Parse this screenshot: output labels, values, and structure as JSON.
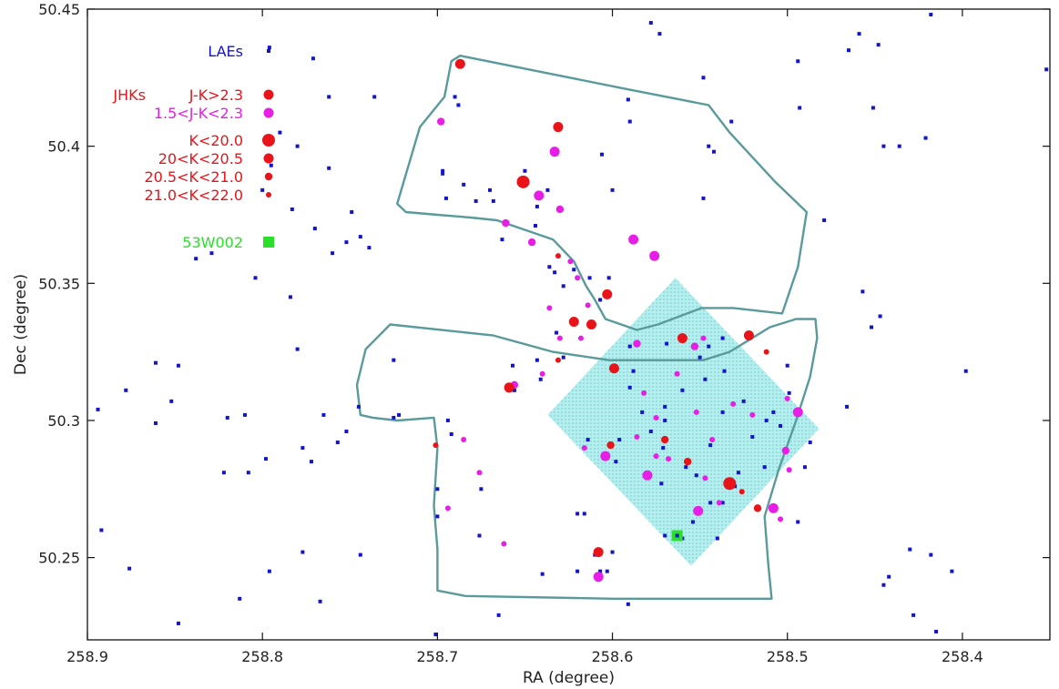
{
  "chart_data": {
    "type": "scatter",
    "title": "",
    "xlabel": "RA (degree)",
    "ylabel": "Dec (degree)",
    "xlim": [
      258.9,
      258.35
    ],
    "ylim": [
      50.22,
      50.45
    ],
    "x_reversed": true,
    "grid": false,
    "x_ticks": [
      258.9,
      258.8,
      258.7,
      258.6,
      258.5,
      258.4
    ],
    "x_tick_labels": [
      "258.9",
      "258.8",
      "258.7",
      "258.6",
      "258.5",
      "258.4"
    ],
    "y_ticks": [
      50.25,
      50.3,
      50.35,
      50.4,
      50.45
    ],
    "y_tick_labels": [
      "50.25",
      "50.3",
      "50.35",
      "50.4",
      "50.45"
    ],
    "legend": {
      "placement": "top-left",
      "lae_label": "LAEs",
      "jhks_label": "JHKs",
      "color_entries": [
        {
          "label": "J-K>2.3",
          "color": "#e8141a"
        },
        {
          "label": "1.5<J-K<2.3",
          "color": "#e61ee6"
        }
      ],
      "size_entries": [
        {
          "label": "K<20.0",
          "color": "#e8141a",
          "size": "xl"
        },
        {
          "label": "20<K<20.5",
          "color": "#e8141a",
          "size": "l"
        },
        {
          "label": "20.5<K<21.0",
          "color": "#e8141a",
          "size": "m"
        },
        {
          "label": "21.0<K<22.0",
          "color": "#e8141a",
          "size": "s"
        }
      ],
      "source_label": "53W002",
      "source_color": "#2be02b"
    },
    "colors": {
      "lae": "#1414c8",
      "red": "#e8141a",
      "magenta": "#e61ee6",
      "source": "#2be02b",
      "footprint": "#5a9a9a",
      "field_fill": "#9ee6e6"
    },
    "footprint_outline": [
      [
        258.687,
        50.433
      ],
      [
        258.593,
        50.421
      ],
      [
        258.545,
        50.415
      ],
      [
        258.533,
        50.405
      ],
      [
        258.507,
        50.387
      ],
      [
        258.489,
        50.376
      ],
      [
        258.494,
        50.356
      ],
      [
        258.503,
        50.339
      ],
      [
        258.531,
        50.341
      ],
      [
        258.549,
        50.341
      ],
      [
        258.574,
        50.335
      ],
      [
        258.586,
        50.333
      ],
      [
        258.604,
        50.337
      ],
      [
        258.61,
        50.344
      ],
      [
        258.615,
        50.349
      ],
      [
        258.622,
        50.358
      ],
      [
        258.634,
        50.366
      ],
      [
        258.666,
        50.373
      ],
      [
        258.681,
        50.374
      ],
      [
        258.7,
        50.375
      ],
      [
        258.718,
        50.376
      ],
      [
        258.723,
        50.379
      ],
      [
        258.71,
        50.407
      ],
      [
        258.696,
        50.418
      ],
      [
        258.692,
        50.431
      ],
      [
        258.687,
        50.433
      ]
    ],
    "footprint_outline_lower": [
      [
        258.548,
        50.322
      ],
      [
        258.533,
        50.325
      ],
      [
        258.51,
        50.334
      ],
      [
        258.495,
        50.337
      ],
      [
        258.484,
        50.337
      ],
      [
        258.483,
        50.33
      ],
      [
        258.487,
        50.316
      ],
      [
        258.495,
        50.3
      ],
      [
        258.505,
        50.282
      ],
      [
        258.513,
        50.265
      ],
      [
        258.511,
        50.248
      ],
      [
        258.509,
        50.235
      ],
      [
        258.6,
        50.235
      ],
      [
        258.684,
        50.236
      ],
      [
        258.7,
        50.238
      ],
      [
        258.7,
        50.253
      ],
      [
        258.702,
        50.269
      ],
      [
        258.7,
        50.29
      ],
      [
        258.702,
        50.301
      ],
      [
        258.723,
        50.3
      ],
      [
        258.737,
        50.301
      ],
      [
        258.744,
        50.302
      ],
      [
        258.746,
        50.313
      ],
      [
        258.741,
        50.326
      ],
      [
        258.727,
        50.335
      ],
      [
        258.668,
        50.331
      ],
      [
        258.634,
        50.325
      ],
      [
        258.602,
        50.322
      ],
      [
        258.548,
        50.322
      ]
    ],
    "field_polygon": [
      [
        258.564,
        50.352
      ],
      [
        258.482,
        50.297
      ],
      [
        258.555,
        50.247
      ],
      [
        258.637,
        50.302
      ]
    ],
    "laes": [
      [
        258.796,
        50.436
      ],
      [
        258.771,
        50.432
      ],
      [
        258.736,
        50.418
      ],
      [
        258.762,
        50.418
      ],
      [
        258.79,
        50.405
      ],
      [
        258.78,
        50.4
      ],
      [
        258.795,
        50.393
      ],
      [
        258.8,
        50.384
      ],
      [
        258.762,
        50.392
      ],
      [
        258.783,
        50.377
      ],
      [
        258.749,
        50.376
      ],
      [
        258.77,
        50.37
      ],
      [
        258.752,
        50.365
      ],
      [
        258.76,
        50.361
      ],
      [
        258.744,
        50.367
      ],
      [
        258.739,
        50.363
      ],
      [
        258.838,
        50.359
      ],
      [
        258.829,
        50.361
      ],
      [
        258.804,
        50.352
      ],
      [
        258.784,
        50.345
      ],
      [
        258.905,
        50.333
      ],
      [
        258.878,
        50.311
      ],
      [
        258.861,
        50.321
      ],
      [
        258.848,
        50.32
      ],
      [
        258.852,
        50.307
      ],
      [
        258.894,
        50.304
      ],
      [
        258.861,
        50.299
      ],
      [
        258.82,
        50.301
      ],
      [
        258.81,
        50.302
      ],
      [
        258.78,
        50.326
      ],
      [
        258.765,
        50.302
      ],
      [
        258.777,
        50.29
      ],
      [
        258.772,
        50.285
      ],
      [
        258.798,
        50.286
      ],
      [
        258.808,
        50.281
      ],
      [
        258.757,
        50.292
      ],
      [
        258.752,
        50.296
      ],
      [
        258.745,
        50.305
      ],
      [
        258.722,
        50.302
      ],
      [
        258.725,
        50.322
      ],
      [
        258.725,
        50.301
      ],
      [
        258.694,
        50.3
      ],
      [
        258.692,
        50.295
      ],
      [
        258.7,
        50.275
      ],
      [
        258.7,
        50.265
      ],
      [
        258.675,
        50.275
      ],
      [
        258.676,
        50.258
      ],
      [
        258.822,
        50.281
      ],
      [
        258.848,
        50.226
      ],
      [
        258.876,
        50.246
      ],
      [
        258.892,
        50.26
      ],
      [
        258.777,
        50.252
      ],
      [
        258.767,
        50.234
      ],
      [
        258.744,
        50.251
      ],
      [
        258.796,
        50.245
      ],
      [
        258.813,
        50.235
      ],
      [
        258.701,
        50.222
      ],
      [
        258.666,
        50.219
      ],
      [
        258.603,
        50.245
      ],
      [
        258.607,
        50.245
      ],
      [
        258.64,
        50.244
      ],
      [
        258.665,
        50.229
      ],
      [
        258.591,
        50.233
      ],
      [
        258.442,
        50.243
      ],
      [
        258.445,
        50.24
      ],
      [
        258.43,
        50.253
      ],
      [
        258.418,
        50.251
      ],
      [
        258.428,
        50.229
      ],
      [
        258.415,
        50.223
      ],
      [
        258.406,
        50.245
      ],
      [
        258.494,
        50.263
      ],
      [
        258.49,
        50.283
      ],
      [
        258.487,
        50.292
      ],
      [
        258.499,
        50.31
      ],
      [
        258.504,
        50.298
      ],
      [
        258.508,
        50.303
      ],
      [
        258.52,
        50.294
      ],
      [
        258.513,
        50.283
      ],
      [
        258.534,
        50.276
      ],
      [
        258.552,
        50.28
      ],
      [
        258.558,
        50.283
      ],
      [
        258.544,
        50.27
      ],
      [
        258.551,
        50.267
      ],
      [
        258.572,
        50.277
      ],
      [
        258.571,
        50.29
      ],
      [
        258.578,
        50.296
      ],
      [
        258.57,
        50.305
      ],
      [
        258.583,
        50.303
      ],
      [
        258.588,
        50.318
      ],
      [
        258.59,
        50.327
      ],
      [
        258.569,
        50.328
      ],
      [
        258.57,
        50.3
      ],
      [
        258.547,
        50.315
      ],
      [
        258.55,
        50.323
      ],
      [
        258.545,
        50.327
      ],
      [
        258.537,
        50.33
      ],
      [
        258.536,
        50.318
      ],
      [
        258.537,
        50.303
      ],
      [
        258.525,
        50.307
      ],
      [
        258.512,
        50.3
      ],
      [
        258.466,
        50.305
      ],
      [
        258.452,
        50.334
      ],
      [
        258.447,
        50.338
      ],
      [
        258.457,
        50.347
      ],
      [
        258.398,
        50.318
      ],
      [
        258.352,
        50.428
      ],
      [
        258.418,
        50.448
      ],
      [
        258.448,
        50.437
      ],
      [
        258.459,
        50.441
      ],
      [
        258.465,
        50.435
      ],
      [
        258.494,
        50.431
      ],
      [
        258.493,
        50.414
      ],
      [
        258.451,
        50.414
      ],
      [
        258.445,
        50.4
      ],
      [
        258.436,
        50.4
      ],
      [
        258.421,
        50.403
      ],
      [
        258.479,
        50.373
      ],
      [
        258.548,
        50.381
      ],
      [
        258.545,
        50.4
      ],
      [
        258.542,
        50.398
      ],
      [
        258.548,
        50.425
      ],
      [
        258.532,
        50.409
      ],
      [
        258.573,
        50.441
      ],
      [
        258.578,
        50.445
      ],
      [
        258.591,
        50.417
      ],
      [
        258.59,
        50.409
      ],
      [
        258.606,
        50.397
      ],
      [
        258.6,
        50.384
      ],
      [
        258.637,
        50.384
      ],
      [
        258.643,
        50.378
      ],
      [
        258.65,
        50.391
      ],
      [
        258.644,
        50.371
      ],
      [
        258.668,
        50.38
      ],
      [
        258.678,
        50.38
      ],
      [
        258.67,
        50.384
      ],
      [
        258.685,
        50.386
      ],
      [
        258.697,
        50.39
      ],
      [
        258.697,
        50.391
      ],
      [
        258.688,
        50.415
      ],
      [
        258.69,
        50.418
      ],
      [
        258.663,
        50.366
      ],
      [
        258.695,
        50.381
      ],
      [
        258.636,
        50.356
      ],
      [
        258.633,
        50.354
      ],
      [
        258.622,
        50.355
      ],
      [
        258.613,
        50.352
      ],
      [
        258.602,
        50.352
      ],
      [
        258.607,
        50.344
      ],
      [
        258.628,
        50.349
      ],
      [
        258.632,
        50.332
      ],
      [
        258.628,
        50.323
      ],
      [
        258.643,
        50.322
      ],
      [
        258.641,
        50.315
      ],
      [
        258.656,
        50.311
      ],
      [
        258.657,
        50.32
      ],
      [
        258.59,
        50.312
      ],
      [
        258.596,
        50.293
      ],
      [
        258.598,
        50.285
      ],
      [
        258.614,
        50.293
      ],
      [
        258.616,
        50.266
      ],
      [
        258.62,
        50.266
      ],
      [
        258.62,
        50.245
      ],
      [
        258.61,
        50.251
      ],
      [
        258.6,
        50.252
      ],
      [
        258.56,
        50.257
      ],
      [
        258.57,
        50.258
      ],
      [
        258.54,
        50.257
      ],
      [
        258.554,
        50.263
      ],
      [
        258.537,
        50.27
      ],
      [
        258.53,
        50.276
      ],
      [
        258.528,
        50.281
      ],
      [
        258.544,
        50.291
      ],
      [
        258.5,
        50.32
      ],
      [
        258.56,
        50.311
      ]
    ],
    "jhks_red": [
      [
        258.687,
        50.43,
        "l"
      ],
      [
        258.631,
        50.407,
        "l"
      ],
      [
        258.651,
        50.387,
        "xl"
      ],
      [
        258.631,
        50.36,
        "s"
      ],
      [
        258.603,
        50.346,
        "l"
      ],
      [
        258.622,
        50.336,
        "l"
      ],
      [
        258.612,
        50.335,
        "l"
      ],
      [
        258.599,
        50.319,
        "l"
      ],
      [
        258.631,
        50.322,
        "s"
      ],
      [
        258.659,
        50.312,
        "l"
      ],
      [
        258.56,
        50.33,
        "l"
      ],
      [
        258.522,
        50.331,
        "l"
      ],
      [
        258.512,
        50.325,
        "s"
      ],
      [
        258.601,
        50.291,
        "m"
      ],
      [
        258.57,
        50.293,
        "m"
      ],
      [
        258.557,
        50.285,
        "m"
      ],
      [
        258.533,
        50.277,
        "xl"
      ],
      [
        258.526,
        50.274,
        "s"
      ],
      [
        258.517,
        50.268,
        "m"
      ],
      [
        258.701,
        50.291,
        "s"
      ],
      [
        258.608,
        50.252,
        "l"
      ]
    ],
    "jhks_magenta": [
      [
        258.698,
        50.409,
        "m"
      ],
      [
        258.633,
        50.398,
        "l"
      ],
      [
        258.642,
        50.382,
        "l"
      ],
      [
        258.63,
        50.377,
        "m"
      ],
      [
        258.661,
        50.372,
        "m"
      ],
      [
        258.646,
        50.365,
        "m"
      ],
      [
        258.588,
        50.366,
        "l"
      ],
      [
        258.576,
        50.36,
        "l"
      ],
      [
        258.624,
        50.358,
        "s"
      ],
      [
        258.62,
        50.352,
        "s"
      ],
      [
        258.636,
        50.341,
        "s"
      ],
      [
        258.614,
        50.342,
        "s"
      ],
      [
        258.63,
        50.33,
        "s"
      ],
      [
        258.618,
        50.33,
        "s"
      ],
      [
        258.64,
        50.317,
        "s"
      ],
      [
        258.656,
        50.313,
        "m"
      ],
      [
        258.586,
        50.328,
        "m"
      ],
      [
        258.553,
        50.327,
        "m"
      ],
      [
        258.548,
        50.33,
        "s"
      ],
      [
        258.563,
        50.317,
        "s"
      ],
      [
        258.582,
        50.31,
        "s"
      ],
      [
        258.575,
        50.301,
        "s"
      ],
      [
        258.552,
        50.303,
        "s"
      ],
      [
        258.52,
        50.302,
        "s"
      ],
      [
        258.5,
        50.308,
        "s"
      ],
      [
        258.531,
        50.306,
        "s"
      ],
      [
        258.494,
        50.303,
        "l"
      ],
      [
        258.501,
        50.289,
        "m"
      ],
      [
        258.616,
        50.29,
        "s"
      ],
      [
        258.604,
        50.287,
        "l"
      ],
      [
        258.586,
        50.294,
        "s"
      ],
      [
        258.575,
        50.287,
        "s"
      ],
      [
        258.58,
        50.28,
        "l"
      ],
      [
        258.568,
        50.286,
        "s"
      ],
      [
        258.543,
        50.293,
        "s"
      ],
      [
        258.547,
        50.279,
        "s"
      ],
      [
        258.539,
        50.27,
        "s"
      ],
      [
        258.551,
        50.267,
        "l"
      ],
      [
        258.499,
        50.282,
        "s"
      ],
      [
        258.508,
        50.268,
        "l"
      ],
      [
        258.504,
        50.264,
        "s"
      ],
      [
        258.685,
        50.293,
        "s"
      ],
      [
        258.676,
        50.281,
        "s"
      ],
      [
        258.694,
        50.268,
        "s"
      ],
      [
        258.662,
        50.255,
        "s"
      ],
      [
        258.608,
        50.243,
        "l"
      ]
    ],
    "source_53w002": [
      258.563,
      50.258
    ]
  }
}
